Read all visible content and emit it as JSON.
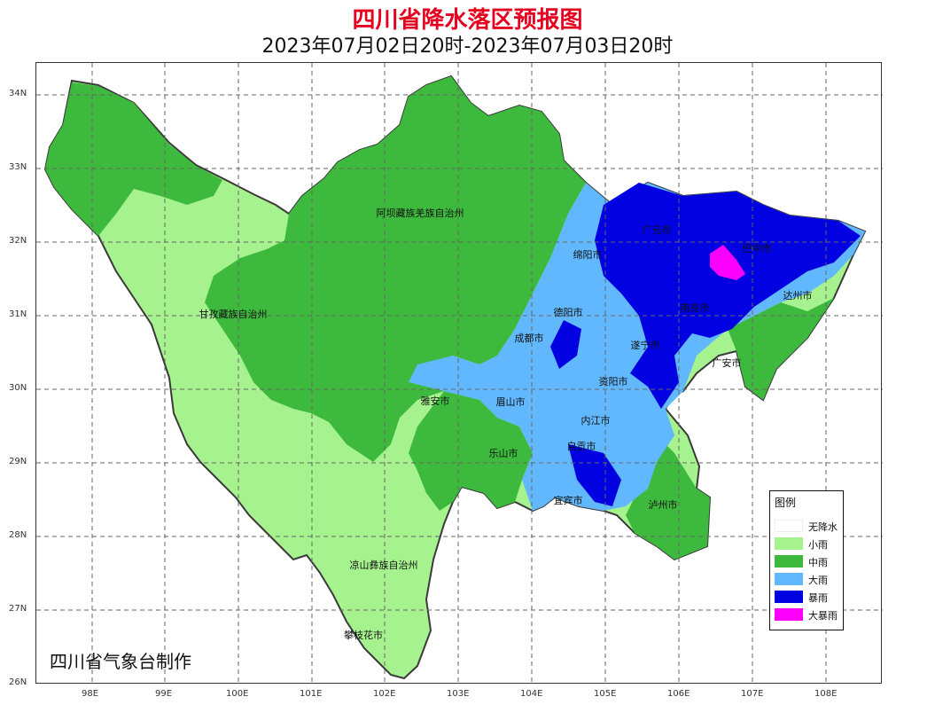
{
  "title": "四川省降水落区预报图",
  "subtitle": "2023年07月02日20时-2023年07月03日20时",
  "credit": "四川省气象台制作",
  "axes": {
    "lon_labels": [
      "98E",
      "99E",
      "100E",
      "101E",
      "102E",
      "103E",
      "104E",
      "105E",
      "106E",
      "107E",
      "108E"
    ],
    "lat_labels": [
      "34N",
      "33N",
      "32N",
      "31N",
      "30N",
      "29N",
      "28N",
      "27N",
      "26N"
    ],
    "grid": "dashed"
  },
  "regions": [
    "阿坝藏族羌族自治州",
    "甘孜藏族自治州",
    "凉山彝族自治州",
    "攀枝花市",
    "广元市",
    "绵阳市",
    "德阳市",
    "成都市",
    "雅安市",
    "眉山市",
    "乐山市",
    "资阳市",
    "内江市",
    "自贡市",
    "宜宾市",
    "泸州市",
    "遂宁市",
    "南充市",
    "巴中市",
    "达州市",
    "广安市"
  ],
  "legend": {
    "title": "图例",
    "items": [
      {
        "label": "无降水",
        "color": "#ffffff"
      },
      {
        "label": "小雨",
        "color": "#a6f28f"
      },
      {
        "label": "中雨",
        "color": "#3dba3d"
      },
      {
        "label": "大雨",
        "color": "#61b8ff"
      },
      {
        "label": "暴雨",
        "color": "#0000e1"
      },
      {
        "label": "大暴雨",
        "color": "#fa00fa"
      }
    ]
  },
  "colors": {
    "title": "#e6001f",
    "grid": "#666666",
    "boundary": "#3a3a3a"
  }
}
